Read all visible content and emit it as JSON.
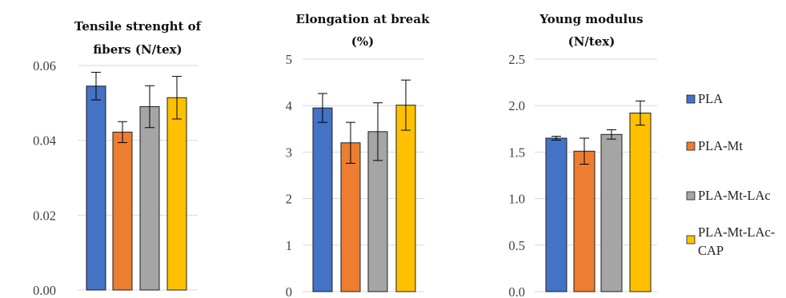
{
  "legend": [
    {
      "label": "PLA",
      "color": "#4472C4"
    },
    {
      "label": "PLA-Mt",
      "color": "#ED7D31"
    },
    {
      "label": "PLA-Mt-LAc",
      "color": "#A5A5A5"
    },
    {
      "label": "PLA-Mt-LAc-CAP",
      "color": "#FFC000"
    }
  ],
  "chart_data": [
    {
      "type": "bar",
      "title": [
        "Tensile strenght of",
        "fibers (N/tex)"
      ],
      "series_names": [
        "PLA",
        "PLA-Mt",
        "PLA-Mt-LAc",
        "PLA-Mt-LAc-CAP"
      ],
      "values": [
        0.0545,
        0.0422,
        0.049,
        0.0514
      ],
      "error": [
        0.0037,
        0.0028,
        0.0056,
        0.0057
      ],
      "ylim": [
        0,
        0.06
      ],
      "yticks": [
        "0.00",
        "0.02",
        "0.04",
        "0.06"
      ],
      "grid": true,
      "legend": "right"
    },
    {
      "type": "bar",
      "title": [
        "Elongation at break",
        "(%)"
      ],
      "series_names": [
        "PLA",
        "PLA-Mt",
        "PLA-Mt-LAc",
        "PLA-Mt-LAc-CAP"
      ],
      "values": [
        3.95,
        3.2,
        3.44,
        4.01
      ],
      "error": [
        0.31,
        0.44,
        0.62,
        0.54
      ],
      "ylim": [
        0,
        5
      ],
      "yticks": [
        "0",
        "1",
        "2",
        "3",
        "4",
        "5"
      ],
      "grid": true,
      "legend": "right"
    },
    {
      "type": "bar",
      "title": [
        "Young modulus",
        "(N/tex)"
      ],
      "series_names": [
        "PLA",
        "PLA-Mt",
        "PLA-Mt-LAc",
        "PLA-Mt-LAc-CAP"
      ],
      "values": [
        1.65,
        1.51,
        1.69,
        1.92
      ],
      "error": [
        0.02,
        0.14,
        0.05,
        0.13
      ],
      "ylim": [
        0,
        2.5
      ],
      "yticks": [
        "0.0",
        "0.5",
        "1.0",
        "1.5",
        "2.0",
        "2.5"
      ],
      "grid": true,
      "legend": "right"
    }
  ]
}
